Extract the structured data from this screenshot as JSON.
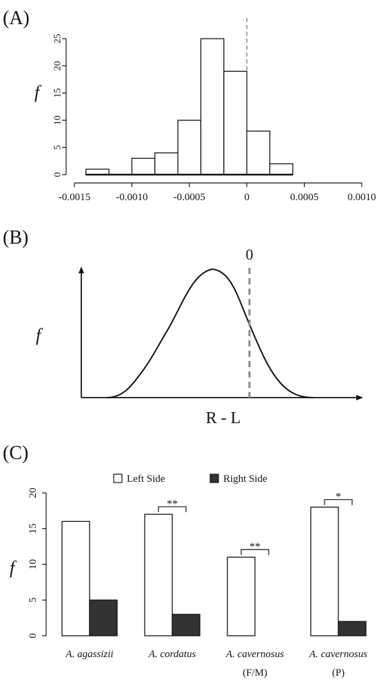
{
  "chart_data": [
    {
      "panel_label": "(A)",
      "type": "bar",
      "ylabel": "f",
      "x_ticks": [
        "-0.0015",
        "-0.0010",
        "-0.0005",
        "0",
        "0.0005",
        "0.0010"
      ],
      "y_ticks": [
        "0",
        "5",
        "10",
        "15",
        "20",
        "25"
      ],
      "xlim": [
        -0.0015,
        0.001
      ],
      "ylim": [
        0,
        25
      ],
      "bin_width": 0.0002,
      "bins": [
        {
          "x": -0.0013,
          "count": 1
        },
        {
          "x": -0.0011,
          "count": 0
        },
        {
          "x": -0.0009,
          "count": 3
        },
        {
          "x": -0.0007,
          "count": 4
        },
        {
          "x": -0.0005,
          "count": 10
        },
        {
          "x": -0.0003,
          "count": 25
        },
        {
          "x": -0.0001,
          "count": 19
        },
        {
          "x": 0.0001,
          "count": 8
        },
        {
          "x": 0.0003,
          "count": 2
        }
      ],
      "reference_line_x": 0
    },
    {
      "panel_label": "(B)",
      "type": "line",
      "ylabel": "f",
      "xlabel": "R - L",
      "reference_label": "0"
    },
    {
      "panel_label": "(C)",
      "type": "bar",
      "ylabel": "f",
      "ylim": [
        0,
        20
      ],
      "y_ticks": [
        "0",
        "5",
        "10",
        "15",
        "20"
      ],
      "legend": [
        {
          "name": "Left Side",
          "color": "#ffffff"
        },
        {
          "name": "Right Side",
          "color": "#333333"
        }
      ],
      "categories": [
        {
          "name": "A. agassizii",
          "sub": ""
        },
        {
          "name": "A. cordatus",
          "sub": ""
        },
        {
          "name": "A. cavernosus",
          "sub": "(F/M)"
        },
        {
          "name": "A. cavernosus",
          "sub": "(P)"
        }
      ],
      "series": [
        {
          "name": "Left Side",
          "values": [
            16,
            17,
            11,
            18
          ]
        },
        {
          "name": "Right Side",
          "values": [
            5,
            3,
            0,
            2
          ]
        }
      ],
      "significance": [
        "",
        "**",
        "**",
        "*"
      ]
    }
  ]
}
